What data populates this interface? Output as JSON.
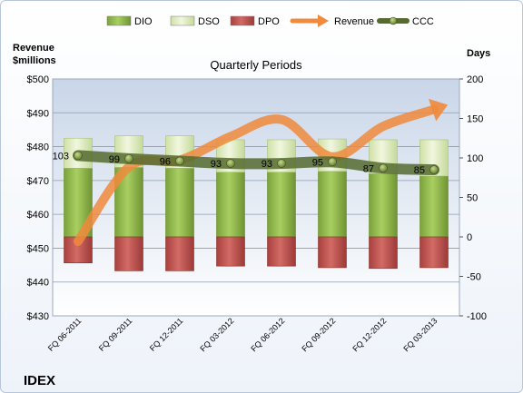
{
  "chart_data": {
    "type": "bar",
    "title": "Quarterly Periods",
    "company": "IDEX",
    "y_left_label": [
      "Revenue",
      "$millions"
    ],
    "y_right_label": "Days",
    "y_left_range": [
      430,
      500
    ],
    "y_left_ticks": [
      "$430",
      "$440",
      "$450",
      "$460",
      "$470",
      "$480",
      "$490",
      "$500"
    ],
    "y_right_range": [
      -100,
      200
    ],
    "y_right_ticks": [
      "-100",
      "-50",
      "0",
      "50",
      "100",
      "150",
      "200"
    ],
    "categories": [
      "FQ 06-2011",
      "FQ 09-2011",
      "FQ 12-2011",
      "FQ 03-2012",
      "FQ 06-2012",
      "FQ 09-2012",
      "FQ 12-2012",
      "FQ 03-2013"
    ],
    "legend_position": "top",
    "series": [
      {
        "name": "DIO",
        "axis": "right",
        "kind": "bar",
        "color": "#8fb848",
        "values": [
          87,
          88,
          87,
          82,
          82,
          83,
          80,
          77
        ]
      },
      {
        "name": "DSO",
        "axis": "right",
        "kind": "bar",
        "color": "#e3efc5",
        "values": [
          38,
          40,
          41,
          41,
          41,
          41,
          43,
          46
        ]
      },
      {
        "name": "DPO",
        "axis": "right",
        "kind": "bar",
        "color": "#c0504d",
        "values": [
          -33,
          -43,
          -43,
          -37,
          -37,
          -39,
          -40,
          -39
        ]
      },
      {
        "name": "Revenue",
        "axis": "left",
        "kind": "line",
        "color": "#f08a3c",
        "values": [
          452,
          474,
          476,
          483,
          488,
          477,
          486,
          491
        ]
      },
      {
        "name": "CCC",
        "axis": "right",
        "kind": "line",
        "color": "#556b2f",
        "values": [
          103,
          99,
          96,
          93,
          93,
          95,
          87,
          85
        ],
        "labels": [
          "103",
          "99",
          "96",
          "93",
          "93",
          "95",
          "87",
          "85"
        ]
      }
    ]
  }
}
